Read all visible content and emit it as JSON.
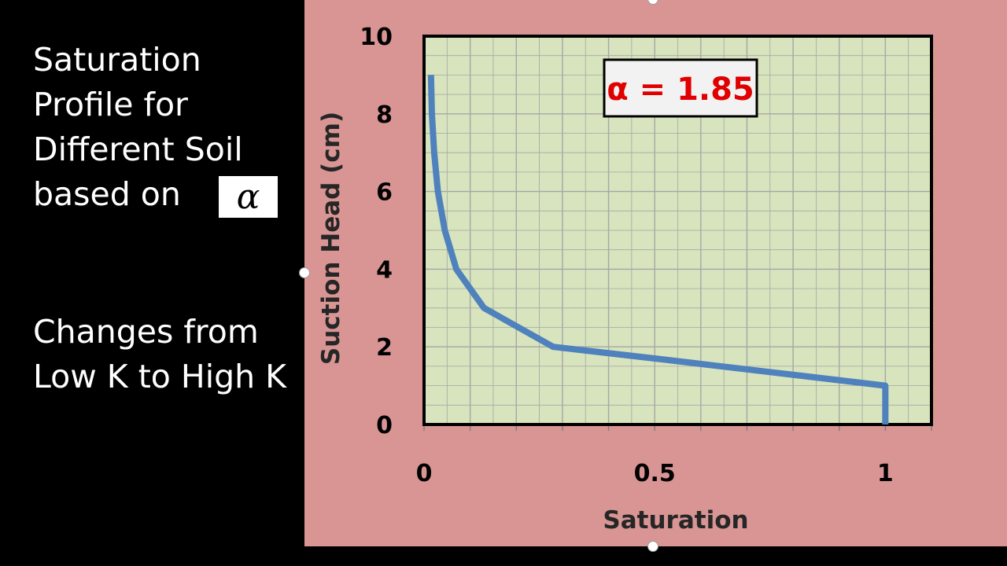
{
  "slide": {
    "title_lines": [
      "Saturation",
      "Profile for",
      "Different Soil",
      "based on"
    ],
    "alpha_symbol": "α",
    "subtitle_lines": [
      "Changes from",
      "Low K to High K"
    ]
  },
  "chart_data": {
    "type": "line",
    "title": "",
    "xlabel": "Saturation",
    "ylabel": "Suction Head (cm)",
    "xlim": [
      0,
      1.1
    ],
    "ylim": [
      0,
      10
    ],
    "xticks": [
      0,
      0.5,
      1
    ],
    "xtick_labels": [
      "0",
      "0.5",
      "1"
    ],
    "yticks": [
      0,
      2,
      4,
      6,
      8,
      10
    ],
    "ytick_labels": [
      "0",
      "2",
      "4",
      "6",
      "8",
      "10"
    ],
    "grid": true,
    "legend": "none",
    "annotation": "α = 1.85",
    "colors": {
      "line": "#4f81bd",
      "plot_background": "#d7e4bd",
      "chart_background": "#d99594",
      "grid": "#a6a6a6",
      "annotation_text": "#e00000",
      "annotation_background": "#f2f2f2"
    },
    "series": [
      {
        "x": [
          0.015,
          0.017,
          0.022,
          0.03,
          0.045,
          0.07,
          0.13,
          0.28,
          0.5,
          0.75,
          1.0,
          1.0
        ],
        "y": [
          9.0,
          8.0,
          7.0,
          6.0,
          5.0,
          4.0,
          3.0,
          2.0,
          1.7,
          1.35,
          1.0,
          0.0
        ]
      }
    ]
  }
}
